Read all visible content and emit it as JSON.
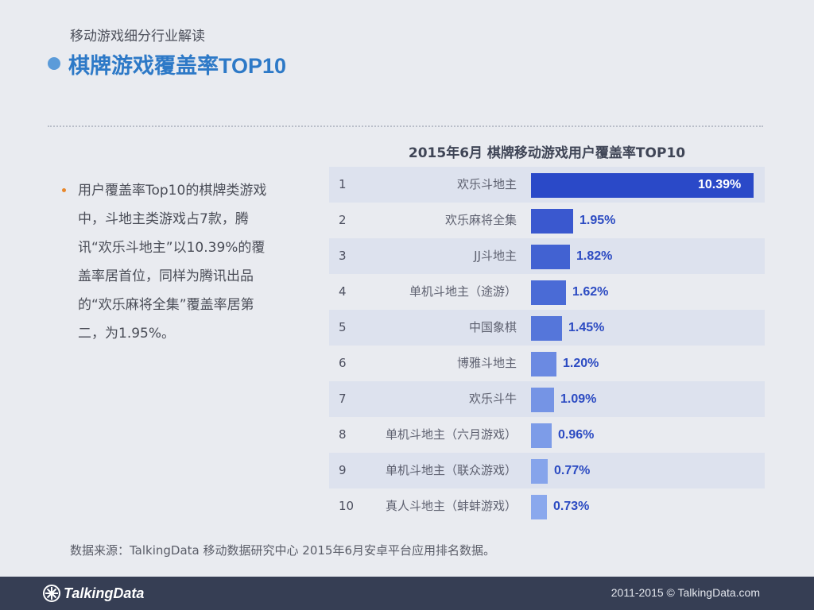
{
  "header": {
    "subtitle": "移动游戏细分行业解读",
    "title": "棋牌游戏覆盖率TOP10"
  },
  "summary": {
    "text": "用户覆盖率Top10的棋牌类游戏中，斗地主类游戏占7款，腾讯“欢乐斗地主”以10.39%的覆盖率居首位，同样为腾讯出品的“欢乐麻将全集”覆盖率居第二，为1.95%。"
  },
  "chart_data": {
    "type": "bar",
    "orientation": "horizontal",
    "title": "2015年6月 棋牌移动游戏用户覆盖率TOP10",
    "ranks": [
      "1",
      "2",
      "3",
      "4",
      "5",
      "6",
      "7",
      "8",
      "9",
      "10"
    ],
    "categories": [
      "欢乐斗地主",
      "欢乐麻将全集",
      "JJ斗地主",
      "单机斗地主（途游）",
      "中国象棋",
      "博雅斗地主",
      "欢乐斗牛",
      "单机斗地主（六月游戏）",
      "单机斗地主（联众游戏）",
      "真人斗地主（蚌蚌游戏）"
    ],
    "values": [
      10.39,
      1.95,
      1.82,
      1.62,
      1.45,
      1.2,
      1.09,
      0.96,
      0.77,
      0.73
    ],
    "value_labels": [
      "10.39%",
      "1.95%",
      "1.82%",
      "1.62%",
      "1.45%",
      "1.20%",
      "1.09%",
      "0.96%",
      "0.77%",
      "0.73%"
    ],
    "bar_colors": [
      "#2a49c8",
      "#3a58cf",
      "#4262d2",
      "#4a6bd6",
      "#5576da",
      "#6b8ae2",
      "#7594e5",
      "#7d9ce8",
      "#86a4eb",
      "#8aa8ed"
    ],
    "value_label_color": "#2c4bc2",
    "row_shading": "alternate",
    "grid": false,
    "legend": "none"
  },
  "source": {
    "text": "数据来源：TalkingData 移动数据研究中心 2015年6月安卓平台应用排名数据。"
  },
  "footer": {
    "logo_text": "TalkingData",
    "logo_icon": "talkingdata-logo-icon",
    "copyright": "2011-2015 © TalkingData.com"
  }
}
